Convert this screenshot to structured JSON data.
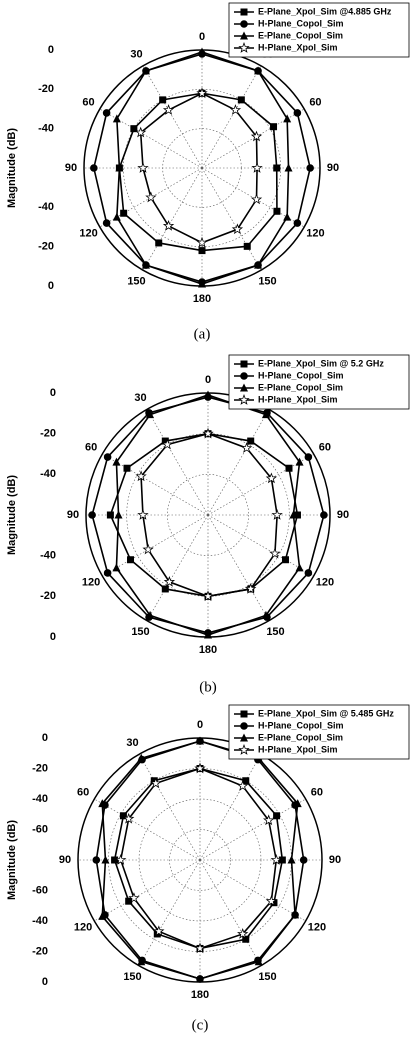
{
  "chart_data": [
    {
      "type": "polar",
      "y_label": "Magnitude (dB)",
      "caption": "(a)",
      "legend": "upper right",
      "grid": true,
      "x": [
        0,
        30,
        60,
        90,
        120,
        150,
        180,
        210,
        240,
        270,
        300,
        330
      ],
      "xticks": [
        0,
        30,
        60,
        90,
        120,
        150,
        180,
        {
          "value": 210,
          "label": "150"
        },
        {
          "value": 240,
          "label": "120"
        },
        {
          "value": 270,
          "label": "90"
        },
        {
          "value": 300,
          "label": "60"
        },
        {
          "value": 330,
          "label": "30"
        }
      ],
      "ylim": [
        -60,
        0
      ],
      "yticks": [
        -40,
        -20,
        0
      ],
      "series": [
        {
          "name": "E-Plane_Xpol_Sim @4.885 GHz",
          "color": "#000000",
          "marker": "square",
          "values": [
            -22,
            -20,
            -18,
            -22,
            -16,
            -14,
            -18,
            -16,
            -14,
            -18,
            -20,
            -20
          ]
        },
        {
          "name": "H-Plane_Copol_Sim",
          "color": "#000000",
          "marker": "circle",
          "values": [
            -2,
            -3,
            -4,
            -5,
            -4,
            -3,
            -2,
            -3,
            -4,
            -5,
            -4,
            -3
          ]
        },
        {
          "name": "E-Plane_Copol_Sim",
          "color": "#000000",
          "marker": "triangle",
          "values": [
            -1,
            -3,
            -10,
            -16,
            -10,
            -3,
            -1,
            -3,
            -10,
            -18,
            -10,
            -3
          ]
        },
        {
          "name": "H-Plane_Xpol_Sim",
          "color": "#000000",
          "marker": "star",
          "values": [
            -22,
            -26,
            -28,
            -32,
            -28,
            -24,
            -22,
            -26,
            -30,
            -30,
            -24,
            -26
          ]
        }
      ]
    },
    {
      "type": "polar",
      "y_label": "Magnitude (dB)",
      "caption": "(b)",
      "legend": "upper right",
      "grid": true,
      "x": [
        0,
        30,
        60,
        90,
        120,
        150,
        180,
        210,
        240,
        270,
        300,
        330
      ],
      "xticks": [
        0,
        30,
        60,
        90,
        120,
        150,
        180,
        {
          "value": 210,
          "label": "150"
        },
        {
          "value": 240,
          "label": "120"
        },
        {
          "value": 270,
          "label": "90"
        },
        {
          "value": 300,
          "label": "60"
        },
        {
          "value": 330,
          "label": "30"
        }
      ],
      "ylim": [
        -60,
        0
      ],
      "yticks": [
        -40,
        -20,
        0
      ],
      "series": [
        {
          "name": "E-Plane_Xpol_Sim @ 5.2 GHz",
          "color": "#000000",
          "marker": "square",
          "values": [
            -20,
            -18,
            -14,
            -16,
            -16,
            -18,
            -20,
            -18,
            -16,
            -12,
            -14,
            -18
          ]
        },
        {
          "name": "H-Plane_Copol_Sim",
          "color": "#000000",
          "marker": "circle",
          "values": [
            -2,
            -2,
            -3,
            -3,
            -3,
            -2,
            -2,
            -2,
            -3,
            -3,
            -3,
            -2
          ]
        },
        {
          "name": "E-Plane_Copol_Sim",
          "color": "#000000",
          "marker": "triangle",
          "values": [
            -1,
            -3,
            -8,
            -18,
            -8,
            -3,
            -1,
            -3,
            -8,
            -16,
            -8,
            -3
          ]
        },
        {
          "name": "H-Plane_Xpol_Sim",
          "color": "#000000",
          "marker": "star",
          "values": [
            -20,
            -22,
            -24,
            -26,
            -22,
            -18,
            -20,
            -22,
            -26,
            -28,
            -22,
            -20
          ]
        }
      ]
    },
    {
      "type": "polar",
      "y_label": "Magnitude (dB)",
      "caption": "(c)",
      "legend": "upper right",
      "grid": true,
      "x": [
        0,
        30,
        60,
        90,
        120,
        150,
        180,
        210,
        240,
        270,
        300,
        330
      ],
      "xticks": [
        0,
        30,
        60,
        90,
        120,
        150,
        180,
        {
          "value": 210,
          "label": "150"
        },
        {
          "value": 240,
          "label": "120"
        },
        {
          "value": 270,
          "label": "90"
        },
        {
          "value": 300,
          "label": "60"
        },
        {
          "value": 330,
          "label": "30"
        }
      ],
      "ylim": [
        -80,
        0
      ],
      "yticks": [
        -60,
        -40,
        -20,
        0
      ],
      "series": [
        {
          "name": "E-Plane_Xpol_Sim @ 5.485 GHz",
          "color": "#000000",
          "marker": "square",
          "values": [
            -20,
            -20,
            -22,
            -26,
            -24,
            -20,
            -22,
            -24,
            -26,
            -24,
            -22,
            -20
          ]
        },
        {
          "name": "H-Plane_Copol_Sim",
          "color": "#000000",
          "marker": "circle",
          "values": [
            -2,
            -4,
            -8,
            -12,
            -8,
            -4,
            -2,
            -4,
            -8,
            -12,
            -8,
            -4
          ]
        },
        {
          "name": "E-Plane_Copol_Sim",
          "color": "#000000",
          "marker": "triangle",
          "values": [
            -2,
            -3,
            -6,
            -20,
            -8,
            -3,
            -2,
            -3,
            -6,
            -18,
            -6,
            -3
          ]
        },
        {
          "name": "H-Plane_Xpol_Sim",
          "color": "#000000",
          "marker": "star",
          "values": [
            -20,
            -24,
            -28,
            -30,
            -26,
            -24,
            -22,
            -26,
            -30,
            -28,
            -26,
            -22
          ]
        }
      ]
    }
  ]
}
